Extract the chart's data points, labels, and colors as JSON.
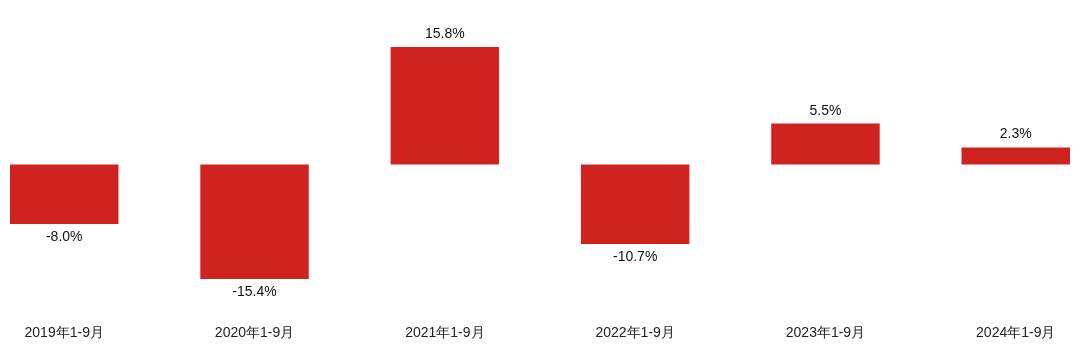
{
  "chart_data": {
    "type": "bar",
    "categories": [
      "2019年1-9月",
      "2020年1-9月",
      "2021年1-9月",
      "2022年1-9月",
      "2023年1-9月",
      "2024年1-9月"
    ],
    "values": [
      -8.0,
      -15.4,
      15.8,
      -10.7,
      5.5,
      2.3
    ],
    "color": "#d0231f",
    "value_labels": [
      "-8.0%",
      "-15.4%",
      "15.8%",
      "-10.7%",
      "5.5%",
      "2.3%"
    ],
    "tick_labels": "x"
  }
}
